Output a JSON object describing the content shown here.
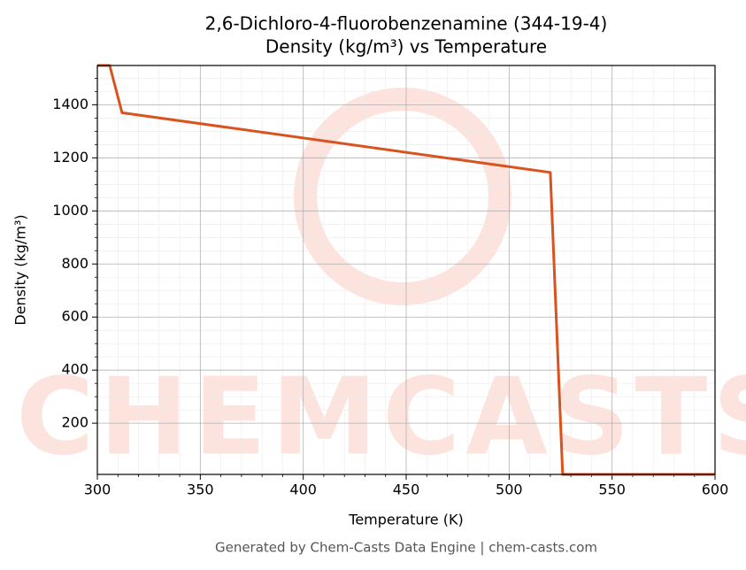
{
  "chart_data": {
    "type": "line",
    "title": "2,6-Dichloro-4-fluorobenzenamine (344-19-4)",
    "subtitle": "Density (kg/m³) vs Temperature",
    "x_label": "Temperature (K)",
    "y_label": "Density (kg/m³)",
    "x": [
      300,
      306,
      312,
      520,
      526,
      600
    ],
    "series": [
      {
        "name": "Density",
        "color": "#d9531e",
        "values": [
          1548,
          1548,
          1370,
          1145,
          7,
          7
        ]
      }
    ],
    "xlim": [
      300,
      600
    ],
    "xticks": [
      300,
      350,
      400,
      450,
      500,
      550,
      600
    ],
    "ylim": [
      7,
      1548
    ],
    "yticks": [
      200,
      400,
      600,
      800,
      1000,
      1200,
      1400
    ],
    "grid": true,
    "minor_grid": true,
    "watermark": "CHEMCASTS",
    "footer": "Generated by Chem-Casts Data Engine | chem-casts.com"
  }
}
